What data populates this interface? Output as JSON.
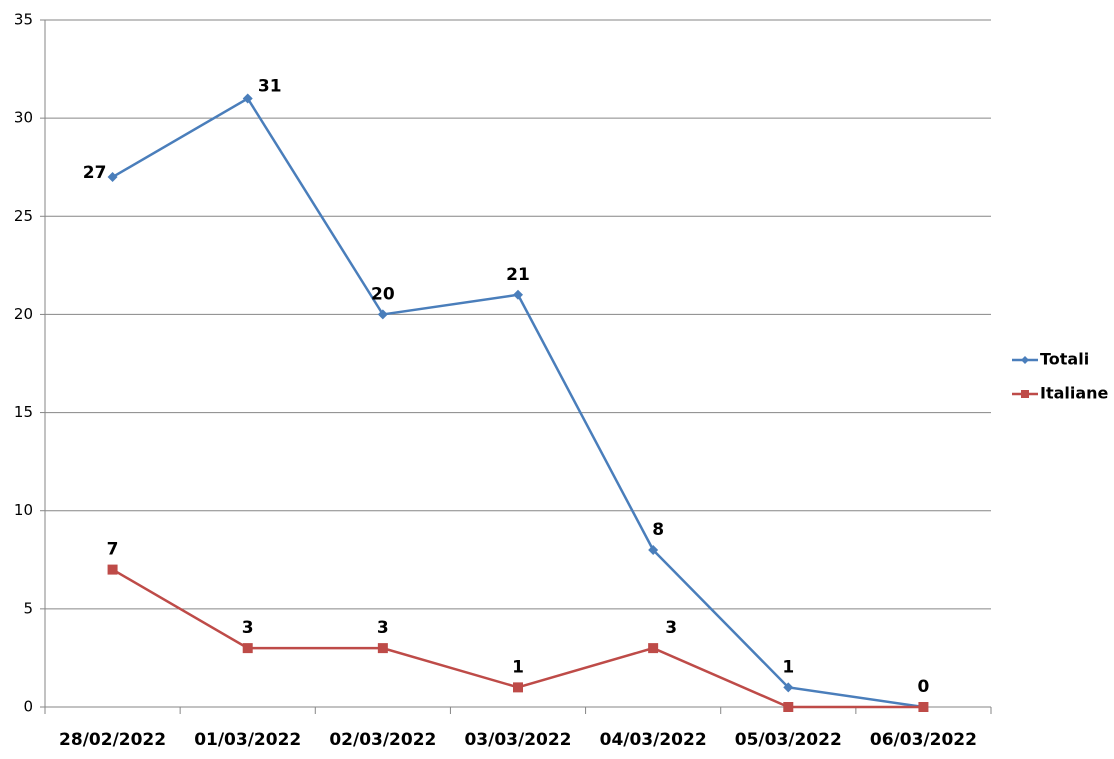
{
  "chart_data": {
    "type": "line",
    "categories": [
      "28/02/2022",
      "01/03/2022",
      "02/03/2022",
      "03/03/2022",
      "04/03/2022",
      "05/03/2022",
      "06/03/2022"
    ],
    "series": [
      {
        "name": "Totali",
        "color": "#4a7ebb",
        "marker": "diamond",
        "values": [
          27,
          31,
          20,
          21,
          8,
          1,
          0
        ]
      },
      {
        "name": "Italiane",
        "color": "#be4b48",
        "marker": "square",
        "values": [
          7,
          3,
          3,
          1,
          3,
          0,
          0
        ],
        "value_labels": [
          "7",
          "3",
          "3",
          "1",
          "3",
          null,
          null
        ]
      }
    ],
    "ylim": [
      0,
      35
    ],
    "yticks": [
      0,
      5,
      10,
      15,
      20,
      25,
      30,
      35
    ],
    "grid": true,
    "legend": "right"
  }
}
